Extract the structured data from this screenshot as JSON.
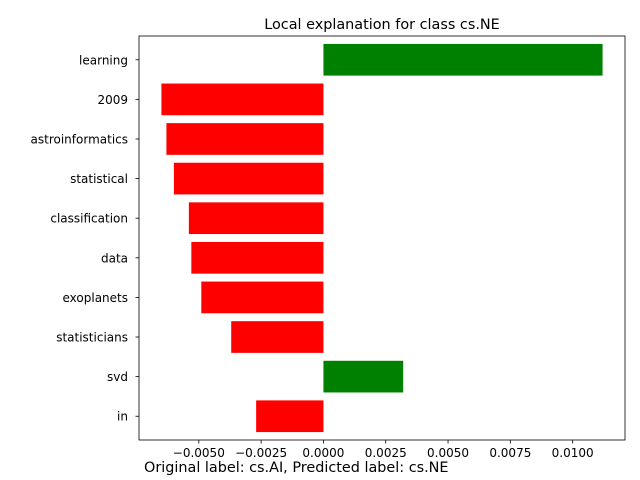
{
  "chart_data": {
    "type": "bar",
    "orientation": "horizontal",
    "title": "Local explanation for class cs.NE",
    "xlabel": "",
    "ylabel": "",
    "categories": [
      "learning",
      "2009",
      "astroinformatics",
      "statistical",
      "classification",
      "data",
      "exoplanets",
      "statisticians",
      "svd",
      "in"
    ],
    "values": [
      0.0112,
      -0.0065,
      -0.0063,
      -0.006,
      -0.0054,
      -0.0053,
      -0.0049,
      -0.0037,
      0.0032,
      -0.0027
    ],
    "xlim": [
      -0.0074,
      0.0121
    ],
    "xticks": [
      -0.005,
      -0.0025,
      0.0,
      0.0025,
      0.005,
      0.0075,
      0.01
    ],
    "xtick_labels": [
      "−0.0050",
      "−0.0025",
      "0.0000",
      "0.0025",
      "0.0050",
      "0.0075",
      "0.0100"
    ],
    "grid": false,
    "positive_color": "#008000",
    "negative_color": "#ff0000"
  },
  "caption": "Original label: cs.AI, Predicted label: cs.NE"
}
